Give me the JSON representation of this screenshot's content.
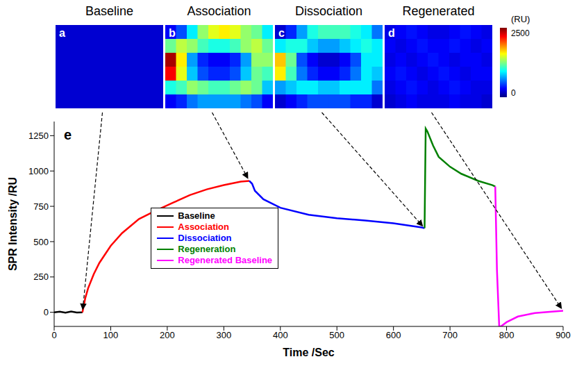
{
  "panels": [
    {
      "letter": "a",
      "title": "Baseline",
      "cells": [
        [
          200,
          200,
          200,
          200,
          200,
          200,
          200,
          200,
          200,
          200
        ],
        [
          200,
          200,
          200,
          200,
          200,
          200,
          200,
          200,
          200,
          200
        ],
        [
          200,
          200,
          200,
          200,
          200,
          200,
          200,
          200,
          200,
          200
        ],
        [
          200,
          200,
          200,
          200,
          200,
          200,
          200,
          200,
          200,
          200
        ],
        [
          200,
          200,
          200,
          200,
          200,
          200,
          200,
          200,
          200,
          200
        ],
        [
          200,
          200,
          200,
          200,
          200,
          200,
          200,
          200,
          200,
          200
        ]
      ]
    },
    {
      "letter": "b",
      "title": "Association",
      "cells": [
        [
          300,
          500,
          900,
          1300,
          1500,
          1600,
          1500,
          1300,
          1200,
          900
        ],
        [
          1200,
          1400,
          1300,
          1100,
          1000,
          1000,
          1100,
          1300,
          1400,
          1200
        ],
        [
          2400,
          1600,
          700,
          400,
          300,
          300,
          400,
          700,
          1300,
          1300
        ],
        [
          2200,
          1500,
          800,
          500,
          400,
          400,
          500,
          800,
          1200,
          1100
        ],
        [
          1000,
          1100,
          1300,
          1200,
          1100,
          1100,
          1200,
          1300,
          1200,
          800
        ],
        [
          300,
          400,
          600,
          700,
          700,
          700,
          700,
          600,
          500,
          300
        ]
      ]
    },
    {
      "letter": "c",
      "title": "Dissociation",
      "cells": [
        [
          200,
          400,
          700,
          1000,
          1100,
          1100,
          1100,
          1000,
          900,
          600
        ],
        [
          900,
          1000,
          1000,
          800,
          700,
          700,
          800,
          900,
          1000,
          900
        ],
        [
          1700,
          1200,
          500,
          300,
          200,
          200,
          300,
          500,
          900,
          900
        ],
        [
          1600,
          1100,
          600,
          400,
          300,
          300,
          400,
          600,
          900,
          800
        ],
        [
          700,
          800,
          900,
          900,
          800,
          800,
          900,
          900,
          900,
          600
        ],
        [
          200,
          300,
          400,
          500,
          500,
          500,
          500,
          400,
          400,
          200
        ]
      ]
    },
    {
      "letter": "d",
      "title": "Regenerated",
      "cells": [
        [
          250,
          300,
          350,
          300,
          250,
          250,
          300,
          350,
          300,
          250
        ],
        [
          300,
          250,
          300,
          350,
          300,
          300,
          350,
          300,
          250,
          300
        ],
        [
          250,
          300,
          250,
          300,
          350,
          300,
          250,
          300,
          300,
          250
        ],
        [
          300,
          350,
          300,
          250,
          300,
          350,
          300,
          250,
          300,
          300
        ],
        [
          250,
          300,
          350,
          300,
          250,
          300,
          350,
          300,
          250,
          250
        ],
        [
          200,
          250,
          300,
          250,
          250,
          250,
          300,
          250,
          250,
          200
        ]
      ]
    }
  ],
  "colorbar": {
    "label": "(RU)",
    "range": [
      0,
      2500
    ],
    "ticks": [
      0,
      2500
    ]
  },
  "chart_data": {
    "type": "line",
    "letter": "e",
    "x_label": "Time /Sec",
    "y_label": "SPR Intensity /RU",
    "xlim": [
      0,
      900
    ],
    "xticks": [
      0,
      100,
      200,
      300,
      400,
      500,
      600,
      700,
      800,
      900
    ],
    "ylim": [
      -100,
      1350
    ],
    "yticks": [
      0,
      250,
      500,
      750,
      1000,
      1250
    ],
    "grid": false,
    "legend": "lower center",
    "series": [
      {
        "name": "Baseline",
        "color": "#000000",
        "x": [
          0,
          10,
          20,
          30,
          40,
          50
        ],
        "values": [
          0,
          4,
          -3,
          5,
          -2,
          0
        ]
      },
      {
        "name": "Association",
        "color": "#ff0000",
        "x": [
          50,
          55,
          60,
          70,
          80,
          100,
          120,
          150,
          180,
          210,
          240,
          270,
          300,
          330,
          345
        ],
        "values": [
          0,
          100,
          170,
          270,
          350,
          470,
          560,
          660,
          720,
          775,
          830,
          870,
          900,
          925,
          930
        ]
      },
      {
        "name": "Dissociation",
        "color": "#0000ff",
        "x": [
          345,
          350,
          355,
          370,
          400,
          450,
          500,
          550,
          600,
          650,
          655
        ],
        "values": [
          930,
          910,
          860,
          800,
          740,
          690,
          665,
          650,
          630,
          600,
          595
        ]
      },
      {
        "name": "Regeneration",
        "color": "#008000",
        "x": [
          655,
          657,
          660,
          670,
          680,
          700,
          720,
          750,
          775,
          780
        ],
        "values": [
          595,
          1300,
          1280,
          1180,
          1100,
          1030,
          980,
          930,
          900,
          890
        ]
      },
      {
        "name": "Regenerated Baseline",
        "color": "#ff00ff",
        "x": [
          780,
          783,
          787,
          790,
          800,
          820,
          850,
          880,
          900
        ],
        "values": [
          890,
          300,
          -100,
          -100,
          -70,
          -30,
          -5,
          5,
          10
        ]
      }
    ]
  }
}
